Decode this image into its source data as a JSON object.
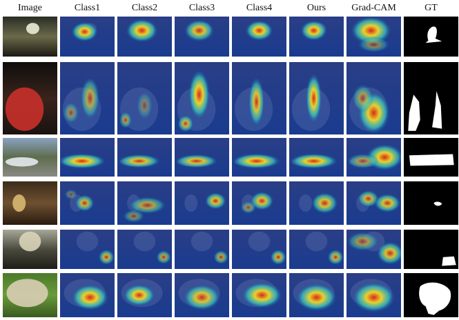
{
  "figure": {
    "columns": [
      "Image",
      "Class1",
      "Class2",
      "Class3",
      "Class4",
      "Ours",
      "Grad-CAM",
      "GT"
    ],
    "rows": [
      {
        "scene": "bird-on-bicycle"
      },
      {
        "scene": "boy-with-bottle"
      },
      {
        "scene": "bus-on-road"
      },
      {
        "scene": "living-room"
      },
      {
        "scene": "bicycles-in-room"
      },
      {
        "scene": "sheep-on-grass"
      }
    ],
    "colors": {
      "heat_low": "#1a3b8f",
      "heat_mid": "#35c6c0",
      "heat_high": "#e8d22c",
      "heat_peak": "#d8281c",
      "gt_fg": "#ffffff",
      "gt_bg": "#000000"
    }
  }
}
